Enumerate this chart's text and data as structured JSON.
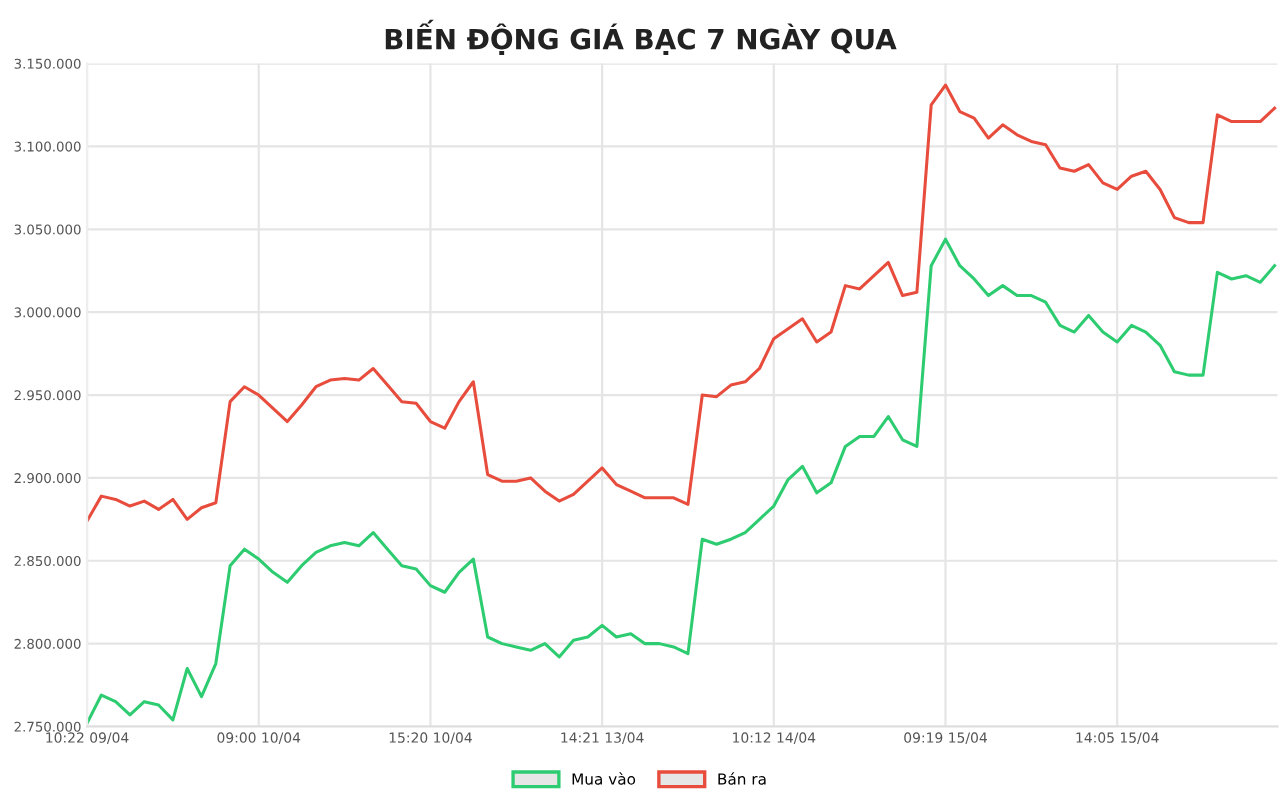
{
  "chart_data": {
    "type": "line",
    "title": "BIẾN ĐỘNG GIÁ BẠC 7 NGÀY QUA",
    "categories": [
      "10:22 09/04",
      null,
      null,
      null,
      null,
      null,
      null,
      null,
      null,
      null,
      null,
      null,
      "09:00 10/04",
      null,
      null,
      null,
      null,
      null,
      null,
      null,
      null,
      null,
      null,
      null,
      "15:20 10/04",
      null,
      null,
      null,
      null,
      null,
      null,
      null,
      null,
      null,
      null,
      null,
      "14:21 13/04",
      null,
      null,
      null,
      null,
      null,
      null,
      null,
      null,
      null,
      null,
      null,
      "10:12 14/04",
      null,
      null,
      null,
      null,
      null,
      null,
      null,
      null,
      null,
      null,
      null,
      "09:19 15/04",
      null,
      null,
      null,
      null,
      null,
      null,
      null,
      null,
      null,
      null,
      null,
      "14:05 15/04",
      null,
      null,
      null,
      null,
      null,
      null,
      null,
      null,
      null,
      null,
      null
    ],
    "series": [
      {
        "name": "Mua vào",
        "color": "#2ecc71",
        "values": [
          2752000,
          2769000,
          2765000,
          2757000,
          2765000,
          2763000,
          2754000,
          2785000,
          2768000,
          2788000,
          2847000,
          2857000,
          2851000,
          2843000,
          2837000,
          2847000,
          2855000,
          2859000,
          2861000,
          2859000,
          2867000,
          2857000,
          2847000,
          2845000,
          2835000,
          2831000,
          2843000,
          2851000,
          2804000,
          2800000,
          2798000,
          2796000,
          2800000,
          2792000,
          2802000,
          2804000,
          2811000,
          2804000,
          2806000,
          2800000,
          2800000,
          2798000,
          2794000,
          2863000,
          2860000,
          2863000,
          2867000,
          2875000,
          2883000,
          2899000,
          2907000,
          2891000,
          2897000,
          2919000,
          2925000,
          2925000,
          2937000,
          2923000,
          2919000,
          3028000,
          3044000,
          3028000,
          3020000,
          3010000,
          3016000,
          3010000,
          3010000,
          3006000,
          2992000,
          2988000,
          2998000,
          2988000,
          2982000,
          2992000,
          2988000,
          2980000,
          2964000,
          2962000,
          2962000,
          3024000,
          3020000,
          3022000,
          3018000,
          3028000
        ]
      },
      {
        "name": "Bán ra",
        "color": "#e74c3c",
        "values": [
          2874000,
          2889000,
          2887000,
          2883000,
          2886000,
          2881000,
          2887000,
          2875000,
          2882000,
          2885000,
          2946000,
          2955000,
          2950000,
          2942000,
          2934000,
          2944000,
          2955000,
          2959000,
          2960000,
          2959000,
          2966000,
          2956000,
          2946000,
          2945000,
          2934000,
          2930000,
          2946000,
          2958000,
          2902000,
          2898000,
          2898000,
          2900000,
          2892000,
          2886000,
          2890000,
          2898000,
          2906000,
          2896000,
          2892000,
          2888000,
          2888000,
          2888000,
          2884000,
          2950000,
          2949000,
          2956000,
          2958000,
          2966000,
          2984000,
          2990000,
          2996000,
          2982000,
          2988000,
          3016000,
          3014000,
          3022000,
          3030000,
          3010000,
          3012000,
          3125000,
          3137000,
          3121000,
          3117000,
          3105000,
          3113000,
          3107000,
          3103000,
          3101000,
          3087000,
          3085000,
          3089000,
          3078000,
          3074000,
          3082000,
          3085000,
          3074000,
          3057000,
          3054000,
          3054000,
          3119000,
          3115000,
          3115000,
          3115000,
          3123000
        ]
      }
    ],
    "ylim": [
      2750000,
      3150000
    ],
    "yticks": [
      {
        "value": 2750000,
        "label": "2.750.000"
      },
      {
        "value": 2800000,
        "label": "2.800.000"
      },
      {
        "value": 2850000,
        "label": "2.850.000"
      },
      {
        "value": 2900000,
        "label": "2.900.000"
      },
      {
        "value": 2950000,
        "label": "2.950.000"
      },
      {
        "value": 3000000,
        "label": "3.000.000"
      },
      {
        "value": 3050000,
        "label": "3.050.000"
      },
      {
        "value": 3100000,
        "label": "3.100.000"
      },
      {
        "value": 3150000,
        "label": "3.150.000"
      }
    ],
    "grid": true,
    "legend": "bottom",
    "marker": "none",
    "line_style": "solid"
  }
}
